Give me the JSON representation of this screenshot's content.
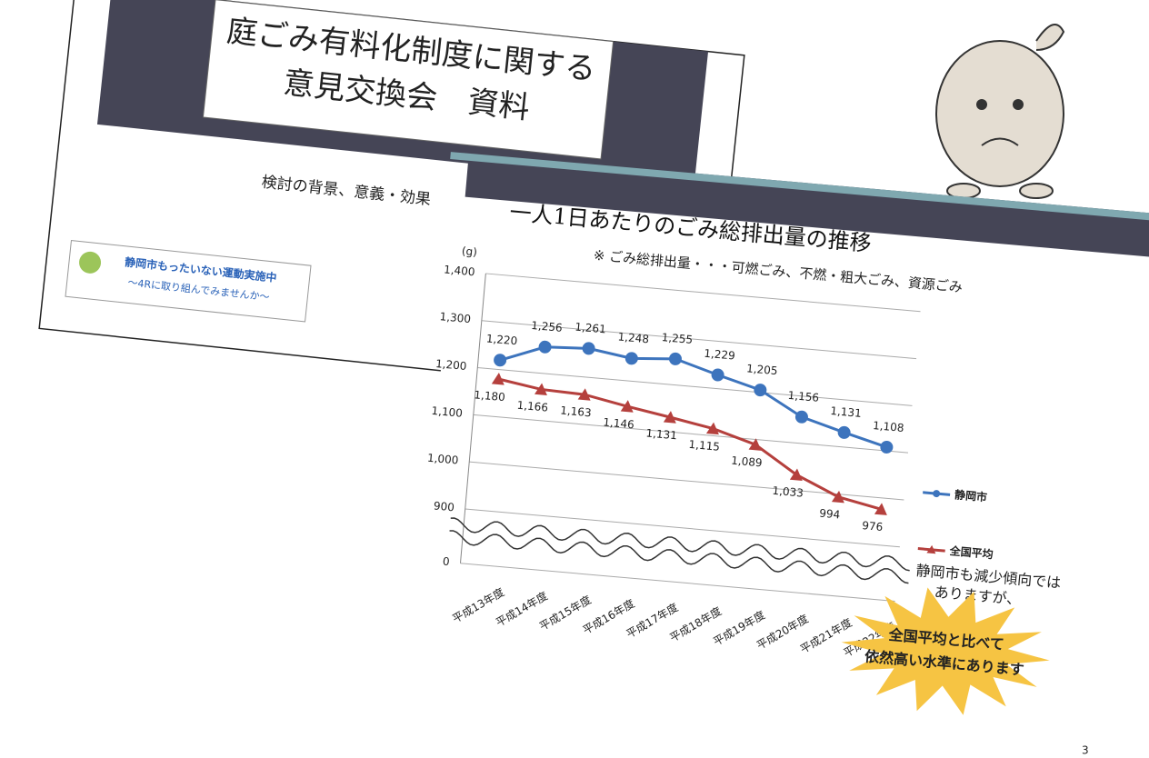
{
  "back_slide": {
    "title_lines": [
      "庭ごみ有料化制度に関する",
      "意見交換会　資料"
    ],
    "subtitle": "検討の背景、意義・効果",
    "banner_lines": [
      "静岡市もったいない運動実施中",
      "～4Rに取り組んでみませんか～"
    ]
  },
  "page_number": "3",
  "chart_data": {
    "type": "line",
    "title": "一人1日あたりのごみ総排出量の推移",
    "subtitle": "※ ごみ総排出量・・・可燃ごみ、不燃・粗大ごみ、資源ごみ",
    "y_label": "(g)",
    "annotations": [
      "静岡市も減少傾向では",
      "ありますが、"
    ],
    "callout_lines": [
      "全国平均と比べて",
      "依然高い水準にあります"
    ],
    "categories": [
      "平成13年度",
      "平成14年度",
      "平成15年度",
      "平成16年度",
      "平成17年度",
      "平成18年度",
      "平成19年度",
      "平成20年度",
      "平成21年度",
      "平成22年度"
    ],
    "series": [
      {
        "name": "静岡市",
        "color": "#3d74bd",
        "marker": "circle",
        "values": [
          1220,
          1256,
          1261,
          1248,
          1255,
          1229,
          1205,
          1156,
          1131,
          1108
        ],
        "value_labels": [
          "1,220",
          "1,256",
          "1,261",
          "1,248",
          "1,255",
          "1,229",
          "1,205",
          "1,156",
          "1,131",
          "1,108"
        ]
      },
      {
        "name": "全国平均",
        "color": "#b5403d",
        "marker": "triangle",
        "values": [
          1180,
          1166,
          1163,
          1146,
          1131,
          1115,
          1089,
          1033,
          994,
          976
        ],
        "value_labels": [
          "1,180",
          "1,166",
          "1,163",
          "1,146",
          "1,131",
          "1,115",
          "1,089",
          "1,033",
          "994",
          "976"
        ]
      }
    ],
    "ylim": [
      900,
      1400
    ],
    "yticks": [
      0,
      900,
      {
        "value": 1000,
        "label": "1,000"
      },
      {
        "value": 1100,
        "label": "1,100"
      },
      {
        "value": 1200,
        "label": "1,200"
      },
      {
        "value": 1300,
        "label": "1,300"
      },
      {
        "value": 1400,
        "label": "1,400"
      }
    ],
    "axis_break": true,
    "grid": true,
    "legend": "right"
  }
}
